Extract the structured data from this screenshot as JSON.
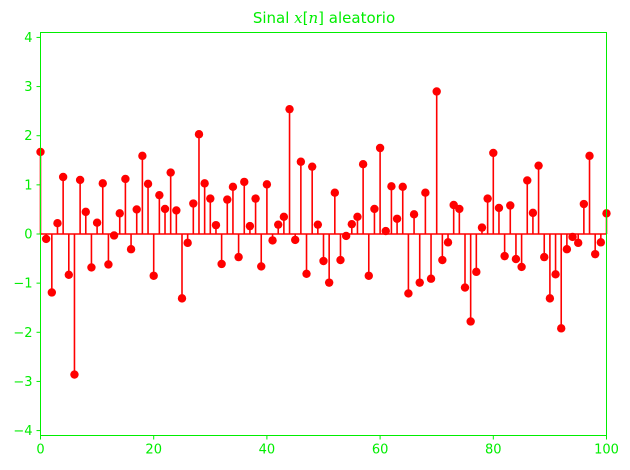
{
  "chart_data": {
    "type": "stem",
    "title_prefix": "Sinal ",
    "title_var": "x",
    "title_open": "[",
    "title_index": "n",
    "title_close": "]",
    "title_suffix": " aleatorio",
    "xlabel": "",
    "ylabel": "",
    "xlim": [
      0,
      100
    ],
    "ylim": [
      -4.1,
      4.1
    ],
    "xticks": [
      0,
      20,
      40,
      60,
      80,
      100
    ],
    "yticks": [
      -4,
      -3,
      -2,
      -1,
      0,
      1,
      2,
      3,
      4
    ],
    "xtick_labels": [
      "0",
      "20",
      "40",
      "60",
      "80",
      "100"
    ],
    "ytick_labels": [
      "−4",
      "−3",
      "−2",
      "−1",
      "0",
      "1",
      "2",
      "3",
      "4"
    ],
    "grid": false,
    "colors": {
      "stem": "#ff0000",
      "axes": "#00ee00",
      "text": "#00ee00"
    },
    "x": [
      0,
      1,
      2,
      3,
      4,
      5,
      6,
      7,
      8,
      9,
      10,
      11,
      12,
      13,
      14,
      15,
      16,
      17,
      18,
      19,
      20,
      21,
      22,
      23,
      24,
      25,
      26,
      27,
      28,
      29,
      30,
      31,
      32,
      33,
      34,
      35,
      36,
      37,
      38,
      39,
      40,
      41,
      42,
      43,
      44,
      45,
      46,
      47,
      48,
      49,
      50,
      51,
      52,
      53,
      54,
      55,
      56,
      57,
      58,
      59,
      60,
      61,
      62,
      63,
      64,
      65,
      66,
      67,
      68,
      69,
      70,
      71,
      72,
      73,
      74,
      75,
      76,
      77,
      78,
      79,
      80,
      81,
      82,
      83,
      84,
      85,
      86,
      87,
      88,
      89,
      90,
      91,
      92,
      93,
      94,
      95,
      96,
      97,
      98,
      99,
      100
    ],
    "values": [
      1.67,
      -0.1,
      -1.19,
      0.22,
      1.16,
      -0.83,
      -2.86,
      1.1,
      0.45,
      -0.68,
      0.23,
      1.03,
      -0.62,
      -0.03,
      0.42,
      1.12,
      -0.31,
      0.5,
      1.59,
      1.02,
      -0.85,
      0.79,
      0.51,
      1.25,
      0.48,
      -1.31,
      -0.18,
      0.62,
      2.03,
      1.03,
      0.72,
      0.18,
      -0.61,
      0.7,
      0.96,
      -0.47,
      1.06,
      0.16,
      0.72,
      -0.66,
      1.01,
      -0.13,
      0.19,
      0.35,
      2.54,
      -0.12,
      1.47,
      -0.81,
      1.37,
      0.19,
      -0.55,
      -0.99,
      0.84,
      -0.53,
      -0.04,
      0.2,
      0.35,
      1.42,
      -0.85,
      0.51,
      1.75,
      0.06,
      0.97,
      0.31,
      0.96,
      -1.21,
      0.4,
      -0.99,
      0.84,
      -0.91,
      2.9,
      -0.53,
      -0.17,
      0.59,
      0.51,
      -1.09,
      -1.78,
      -0.77,
      0.13,
      0.72,
      1.65,
      0.53,
      -0.45,
      0.58,
      -0.51,
      -0.67,
      1.09,
      0.43,
      1.39,
      -0.47,
      -1.31,
      -0.82,
      -1.92,
      -0.31,
      -0.06,
      -0.18,
      0.61,
      1.59,
      -0.41,
      -0.17,
      0.42
    ]
  }
}
